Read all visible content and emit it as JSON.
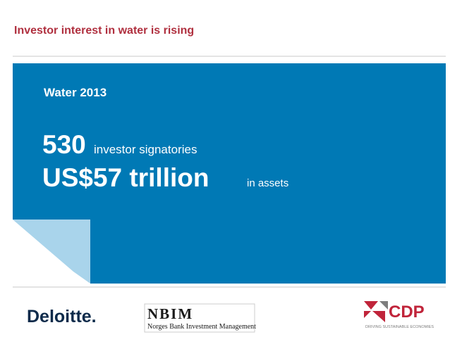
{
  "header": {
    "title": "Investor interest in water is rising"
  },
  "panel": {
    "heading": "Water 2013",
    "lines": [
      {
        "number": "530",
        "text": "investor signatories"
      },
      {
        "number": "US$57 trillion",
        "text": "in assets"
      }
    ]
  },
  "logos": {
    "deloitte": "Deloitte.",
    "nbim": {
      "name": "NBIM",
      "full": "Norges Bank Investment Management"
    },
    "cdp": {
      "name": "CDP",
      "tagline": "DRIVING SUSTAINABLE ECONOMIES"
    }
  }
}
